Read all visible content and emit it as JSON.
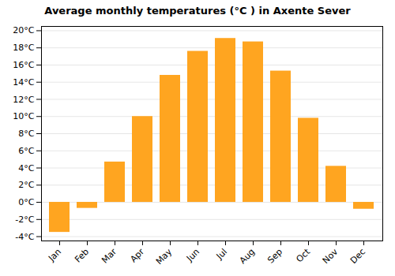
{
  "chart_data": {
    "type": "bar",
    "title": "Average monthly temperatures (°C ) in Axente Sever",
    "categories": [
      "Jan",
      "Feb",
      "Mar",
      "Apr",
      "May",
      "Jun",
      "Jul",
      "Aug",
      "Sep",
      "Oct",
      "Nov",
      "Dec"
    ],
    "values": [
      -3.5,
      -0.7,
      4.7,
      10.0,
      14.8,
      17.6,
      19.1,
      18.7,
      15.3,
      9.8,
      4.2,
      -0.8
    ],
    "color": "#FFA520",
    "ylim": [
      -4.5,
      20.5
    ],
    "yticks": [
      {
        "value": -4,
        "label": "-4°C"
      },
      {
        "value": -2,
        "label": "-2°C"
      },
      {
        "value": 0,
        "label": "0°C"
      },
      {
        "value": 2,
        "label": "2°C"
      },
      {
        "value": 4,
        "label": "4°C"
      },
      {
        "value": 6,
        "label": "6°C"
      },
      {
        "value": 8,
        "label": "8°C"
      },
      {
        "value": 10,
        "label": "10°C"
      },
      {
        "value": 12,
        "label": "12°C"
      },
      {
        "value": 14,
        "label": "14°C"
      },
      {
        "value": 16,
        "label": "16°C"
      },
      {
        "value": 18,
        "label": "18°C"
      },
      {
        "value": 20,
        "label": "20°C"
      }
    ],
    "grid": true
  }
}
